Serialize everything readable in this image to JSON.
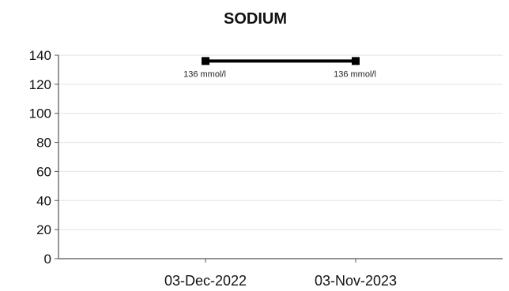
{
  "chart_data": {
    "type": "line",
    "title": "SODIUM",
    "xlabel": "",
    "ylabel": "",
    "categories": [
      "03-Dec-2022",
      "03-Nov-2023"
    ],
    "series": [
      {
        "values": [
          136,
          136
        ],
        "data_labels": [
          "136 mmol/l",
          "136 mmol/l"
        ],
        "color": "#000000"
      }
    ],
    "ylim": [
      0,
      140
    ],
    "yticks": [
      "0",
      "20",
      "40",
      "60",
      "80",
      "100",
      "120",
      "140"
    ],
    "grid": true,
    "legend": "none"
  }
}
